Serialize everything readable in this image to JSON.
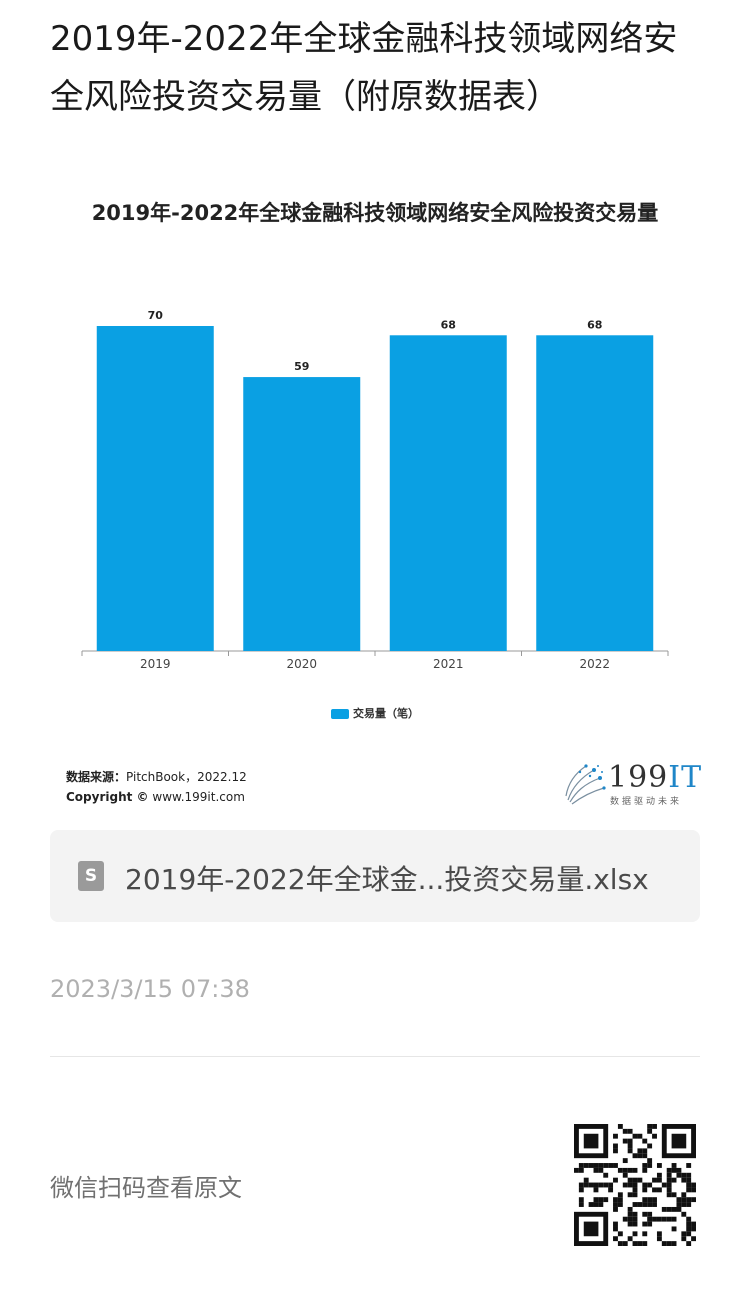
{
  "article": {
    "title": "2019年-2022年全球金融科技领域网络安全风险投资交易量（附原数据表）"
  },
  "chart_data": {
    "type": "bar",
    "title": "2019年-2022年全球金融科技领域网络安全风险投资交易量",
    "categories": [
      "2019",
      "2020",
      "2021",
      "2022"
    ],
    "series": [
      {
        "name": "交易量（笔）",
        "values": [
          70,
          59,
          68,
          68
        ]
      }
    ],
    "ylim": [
      0,
      70
    ],
    "grid": false,
    "legend": "bottom-center",
    "bar_color": "#0aa0e3"
  },
  "source": {
    "label": "数据来源：",
    "text": "PitchBook，2022.12",
    "copyright_label": "Copyright ©",
    "copyright_text": "www.199it.com"
  },
  "brand": {
    "number": "199",
    "suffix": "IT",
    "slogan": "数据驱动未来"
  },
  "attachment": {
    "icon_letter": "S",
    "file_name": "2019年-2022年全球金...投资交易量.xlsx"
  },
  "timestamp": "2023/3/15 07:38",
  "footer": {
    "wechat_tip": "微信扫码查看原文"
  }
}
